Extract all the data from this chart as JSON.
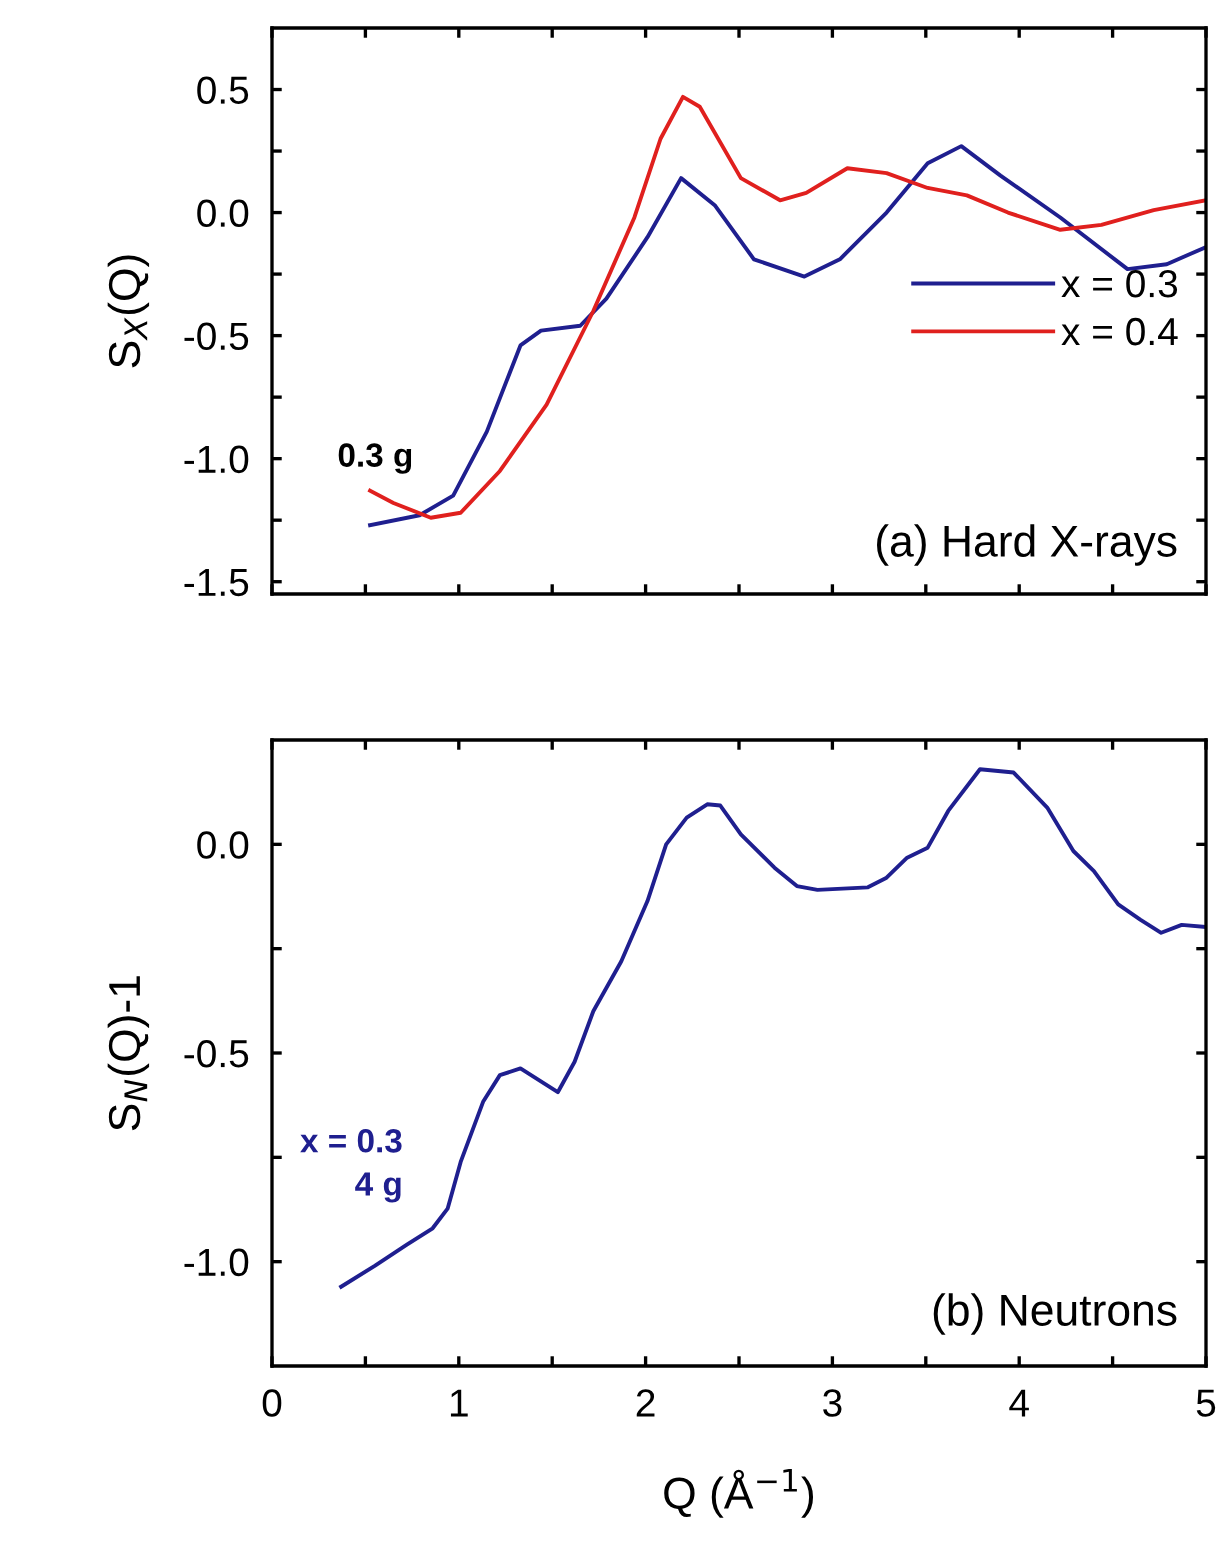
{
  "chart_data": [
    {
      "type": "line",
      "ylabel": "S$_{X}$(Q)",
      "xlim": [
        0,
        5
      ],
      "ylim": [
        -1.55,
        0.75
      ],
      "xticks": [
        {
          "value": 0,
          "label": null
        },
        {
          "value": 0.5,
          "label": null
        },
        {
          "value": 1,
          "label": null
        },
        {
          "value": 1.5,
          "label": null
        },
        {
          "value": 2,
          "label": null
        },
        {
          "value": 2.5,
          "label": null
        },
        {
          "value": 3,
          "label": null
        },
        {
          "value": 3.5,
          "label": null
        },
        {
          "value": 4,
          "label": null
        },
        {
          "value": 4.5,
          "label": null
        },
        {
          "value": 5,
          "label": null
        }
      ],
      "yticks": [
        {
          "value": -1.5,
          "label": "-1.5"
        },
        {
          "value": -1.25,
          "label": null
        },
        {
          "value": -1.0,
          "label": "-1.0"
        },
        {
          "value": -0.75,
          "label": null
        },
        {
          "value": -0.5,
          "label": "-0.5"
        },
        {
          "value": -0.25,
          "label": null
        },
        {
          "value": 0.0,
          "label": "0.0"
        },
        {
          "value": 0.25,
          "label": null
        },
        {
          "value": 0.5,
          "label": "0.5"
        }
      ],
      "tick_labels": "y",
      "grid": false,
      "legend": "right",
      "line_style": "solid",
      "marker": "none",
      "annotations": [
        "0.3 g",
        "(a) Hard X-rays"
      ],
      "series": [
        {
          "name": "x = 0.3",
          "color": "#1f1f8f",
          "x": [
            0.525,
            0.79,
            0.97,
            1.15,
            1.33,
            1.44,
            1.65,
            1.79,
            2.01,
            2.19,
            2.37,
            2.58,
            2.85,
            3.04,
            3.29,
            3.51,
            3.69,
            3.9,
            4.22,
            4.58,
            4.79,
            5.0
          ],
          "values": [
            -1.27,
            -1.23,
            -1.15,
            -0.89,
            -0.54,
            -0.48,
            -0.46,
            -0.35,
            -0.1,
            0.14,
            0.03,
            -0.19,
            -0.26,
            -0.19,
            0.0,
            0.2,
            0.27,
            0.15,
            -0.02,
            -0.23,
            -0.21,
            -0.14
          ]
        },
        {
          "name": "x = 0.4",
          "color": "#e0201e",
          "x": [
            0.525,
            0.65,
            0.85,
            1.01,
            1.22,
            1.47,
            1.72,
            1.94,
            2.08,
            2.2,
            2.29,
            2.51,
            2.72,
            2.86,
            3.08,
            3.29,
            3.51,
            3.72,
            3.94,
            4.22,
            4.44,
            4.72,
            5.0
          ],
          "values": [
            -1.13,
            -1.18,
            -1.24,
            -1.22,
            -1.05,
            -0.78,
            -0.4,
            -0.02,
            0.3,
            0.47,
            0.43,
            0.14,
            0.05,
            0.08,
            0.18,
            0.16,
            0.1,
            0.07,
            0.0,
            -0.07,
            -0.05,
            0.01,
            0.05
          ]
        }
      ]
    },
    {
      "type": "line",
      "ylabel": "S$_{N}$(Q)-1",
      "xlabel": "Q (Å$^{−1}$)",
      "xlim": [
        0,
        5
      ],
      "ylim": [
        -1.25,
        0.25
      ],
      "xticks": [
        {
          "value": 0,
          "label": "0"
        },
        {
          "value": 0.5,
          "label": null
        },
        {
          "value": 1,
          "label": "1"
        },
        {
          "value": 1.5,
          "label": null
        },
        {
          "value": 2,
          "label": "2"
        },
        {
          "value": 2.5,
          "label": null
        },
        {
          "value": 3,
          "label": "3"
        },
        {
          "value": 3.5,
          "label": null
        },
        {
          "value": 4,
          "label": "4"
        },
        {
          "value": 4.5,
          "label": null
        },
        {
          "value": 5,
          "label": "5"
        }
      ],
      "yticks": [
        {
          "value": -1.0,
          "label": "-1.0"
        },
        {
          "value": -0.75,
          "label": null
        },
        {
          "value": -0.5,
          "label": "-0.5"
        },
        {
          "value": -0.25,
          "label": null
        },
        {
          "value": 0.0,
          "label": "0.0"
        }
      ],
      "grid": false,
      "line_style": "solid",
      "marker": "none",
      "annotations": [
        "x = 0.3\n4 g",
        "(b) Neutrons"
      ],
      "series": [
        {
          "color": "#1f1f8f",
          "x": [
            0.37,
            0.55,
            0.72,
            0.86,
            0.94,
            1.01,
            1.13,
            1.22,
            1.33,
            1.53,
            1.62,
            1.72,
            1.87,
            2.01,
            2.11,
            2.22,
            2.33,
            2.4,
            2.51,
            2.69,
            2.81,
            2.92,
            3.19,
            3.29,
            3.4,
            3.51,
            3.62,
            3.79,
            3.97,
            4.15,
            4.29,
            4.4,
            4.53,
            4.65,
            4.76,
            4.87,
            5.0
          ],
          "values": [
            -1.06,
            -1.01,
            -0.96,
            -0.92,
            -0.873,
            -0.761,
            -0.617,
            -0.553,
            -0.537,
            -0.594,
            -0.521,
            -0.4,
            -0.28,
            -0.136,
            0.0,
            0.064,
            0.096,
            0.093,
            0.024,
            -0.056,
            -0.1,
            -0.109,
            -0.103,
            -0.08,
            -0.032,
            -0.008,
            0.08,
            0.18,
            0.172,
            0.088,
            -0.016,
            -0.064,
            -0.144,
            -0.181,
            -0.212,
            -0.193,
            -0.198
          ]
        }
      ]
    }
  ]
}
